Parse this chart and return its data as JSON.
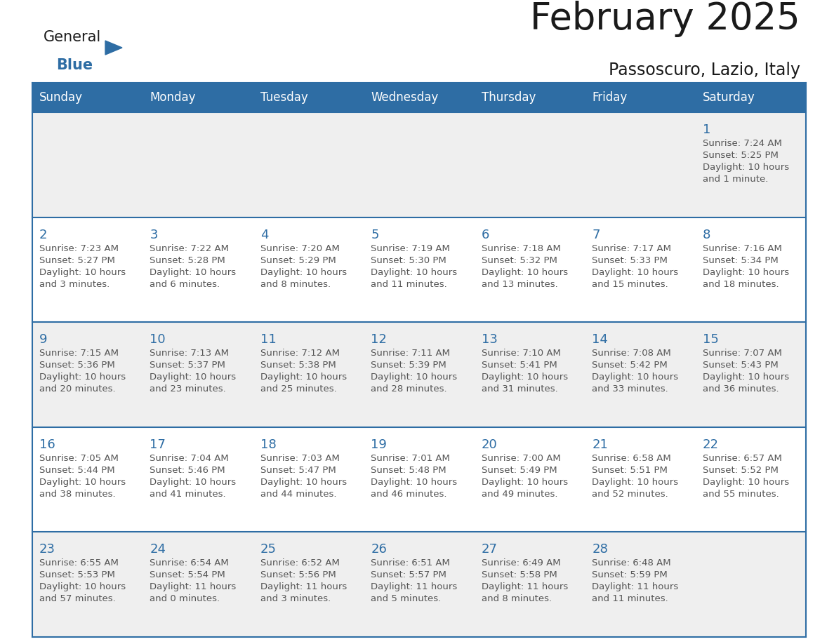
{
  "title": "February 2025",
  "subtitle": "Passoscuro, Lazio, Italy",
  "header_bg": "#2E6DA4",
  "header_text": "#FFFFFF",
  "row_bg_light": "#EFEFEF",
  "row_bg_white": "#FFFFFF",
  "cell_border_color": "#2E6DA4",
  "day_number_color": "#2E6DA4",
  "info_text_color": "#555555",
  "days_of_week": [
    "Sunday",
    "Monday",
    "Tuesday",
    "Wednesday",
    "Thursday",
    "Friday",
    "Saturday"
  ],
  "calendar": [
    [
      null,
      null,
      null,
      null,
      null,
      null,
      {
        "day": "1",
        "sunrise": "7:24 AM",
        "sunset": "5:25 PM",
        "daylight1": "10 hours",
        "daylight2": "and 1 minute."
      }
    ],
    [
      {
        "day": "2",
        "sunrise": "7:23 AM",
        "sunset": "5:27 PM",
        "daylight1": "10 hours",
        "daylight2": "and 3 minutes."
      },
      {
        "day": "3",
        "sunrise": "7:22 AM",
        "sunset": "5:28 PM",
        "daylight1": "10 hours",
        "daylight2": "and 6 minutes."
      },
      {
        "day": "4",
        "sunrise": "7:20 AM",
        "sunset": "5:29 PM",
        "daylight1": "10 hours",
        "daylight2": "and 8 minutes."
      },
      {
        "day": "5",
        "sunrise": "7:19 AM",
        "sunset": "5:30 PM",
        "daylight1": "10 hours",
        "daylight2": "and 11 minutes."
      },
      {
        "day": "6",
        "sunrise": "7:18 AM",
        "sunset": "5:32 PM",
        "daylight1": "10 hours",
        "daylight2": "and 13 minutes."
      },
      {
        "day": "7",
        "sunrise": "7:17 AM",
        "sunset": "5:33 PM",
        "daylight1": "10 hours",
        "daylight2": "and 15 minutes."
      },
      {
        "day": "8",
        "sunrise": "7:16 AM",
        "sunset": "5:34 PM",
        "daylight1": "10 hours",
        "daylight2": "and 18 minutes."
      }
    ],
    [
      {
        "day": "9",
        "sunrise": "7:15 AM",
        "sunset": "5:36 PM",
        "daylight1": "10 hours",
        "daylight2": "and 20 minutes."
      },
      {
        "day": "10",
        "sunrise": "7:13 AM",
        "sunset": "5:37 PM",
        "daylight1": "10 hours",
        "daylight2": "and 23 minutes."
      },
      {
        "day": "11",
        "sunrise": "7:12 AM",
        "sunset": "5:38 PM",
        "daylight1": "10 hours",
        "daylight2": "and 25 minutes."
      },
      {
        "day": "12",
        "sunrise": "7:11 AM",
        "sunset": "5:39 PM",
        "daylight1": "10 hours",
        "daylight2": "and 28 minutes."
      },
      {
        "day": "13",
        "sunrise": "7:10 AM",
        "sunset": "5:41 PM",
        "daylight1": "10 hours",
        "daylight2": "and 31 minutes."
      },
      {
        "day": "14",
        "sunrise": "7:08 AM",
        "sunset": "5:42 PM",
        "daylight1": "10 hours",
        "daylight2": "and 33 minutes."
      },
      {
        "day": "15",
        "sunrise": "7:07 AM",
        "sunset": "5:43 PM",
        "daylight1": "10 hours",
        "daylight2": "and 36 minutes."
      }
    ],
    [
      {
        "day": "16",
        "sunrise": "7:05 AM",
        "sunset": "5:44 PM",
        "daylight1": "10 hours",
        "daylight2": "and 38 minutes."
      },
      {
        "day": "17",
        "sunrise": "7:04 AM",
        "sunset": "5:46 PM",
        "daylight1": "10 hours",
        "daylight2": "and 41 minutes."
      },
      {
        "day": "18",
        "sunrise": "7:03 AM",
        "sunset": "5:47 PM",
        "daylight1": "10 hours",
        "daylight2": "and 44 minutes."
      },
      {
        "day": "19",
        "sunrise": "7:01 AM",
        "sunset": "5:48 PM",
        "daylight1": "10 hours",
        "daylight2": "and 46 minutes."
      },
      {
        "day": "20",
        "sunrise": "7:00 AM",
        "sunset": "5:49 PM",
        "daylight1": "10 hours",
        "daylight2": "and 49 minutes."
      },
      {
        "day": "21",
        "sunrise": "6:58 AM",
        "sunset": "5:51 PM",
        "daylight1": "10 hours",
        "daylight2": "and 52 minutes."
      },
      {
        "day": "22",
        "sunrise": "6:57 AM",
        "sunset": "5:52 PM",
        "daylight1": "10 hours",
        "daylight2": "and 55 minutes."
      }
    ],
    [
      {
        "day": "23",
        "sunrise": "6:55 AM",
        "sunset": "5:53 PM",
        "daylight1": "10 hours",
        "daylight2": "and 57 minutes."
      },
      {
        "day": "24",
        "sunrise": "6:54 AM",
        "sunset": "5:54 PM",
        "daylight1": "11 hours",
        "daylight2": "and 0 minutes."
      },
      {
        "day": "25",
        "sunrise": "6:52 AM",
        "sunset": "5:56 PM",
        "daylight1": "11 hours",
        "daylight2": "and 3 minutes."
      },
      {
        "day": "26",
        "sunrise": "6:51 AM",
        "sunset": "5:57 PM",
        "daylight1": "11 hours",
        "daylight2": "and 5 minutes."
      },
      {
        "day": "27",
        "sunrise": "6:49 AM",
        "sunset": "5:58 PM",
        "daylight1": "11 hours",
        "daylight2": "and 8 minutes."
      },
      {
        "day": "28",
        "sunrise": "6:48 AM",
        "sunset": "5:59 PM",
        "daylight1": "11 hours",
        "daylight2": "and 11 minutes."
      },
      null
    ]
  ]
}
